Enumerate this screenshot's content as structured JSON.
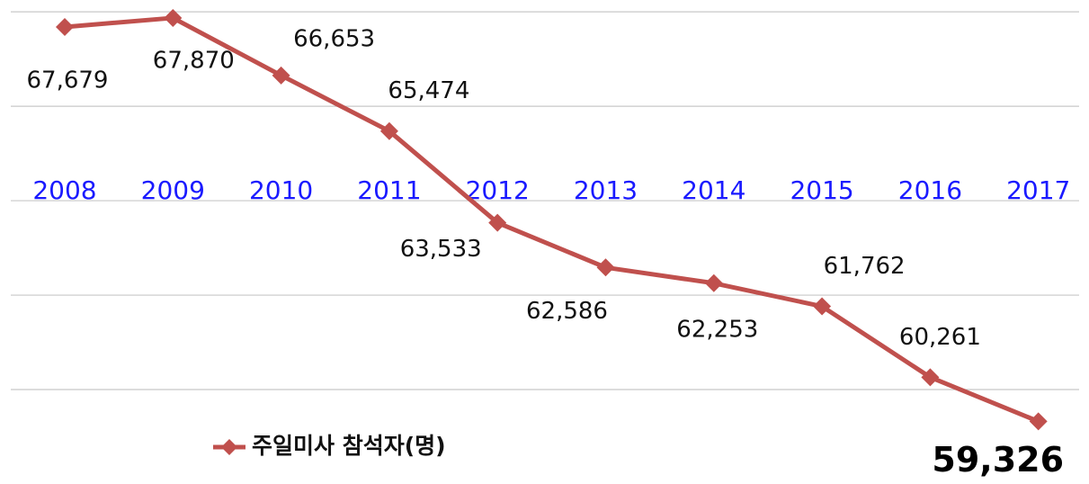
{
  "chart_data": {
    "type": "line",
    "categories": [
      "2008",
      "2009",
      "2010",
      "2011",
      "2012",
      "2013",
      "2014",
      "2015",
      "2016",
      "2017"
    ],
    "series": [
      {
        "name": "주일미사 참석자(명)",
        "color": "#c0504d",
        "values": [
          67679,
          67870,
          66653,
          65474,
          63533,
          62586,
          62253,
          61762,
          60261,
          59326
        ],
        "value_labels": [
          "67,679",
          "67,870",
          "66,653",
          "65,474",
          "63,533",
          "62,586",
          "62,253",
          "61,762",
          "60,261",
          "59,326"
        ]
      }
    ],
    "ylim": [
      58000,
      68250
    ],
    "yticks": [
      60000,
      62000,
      64000,
      66000,
      68000
    ],
    "grid": true,
    "category_color": "#1a1aff"
  }
}
